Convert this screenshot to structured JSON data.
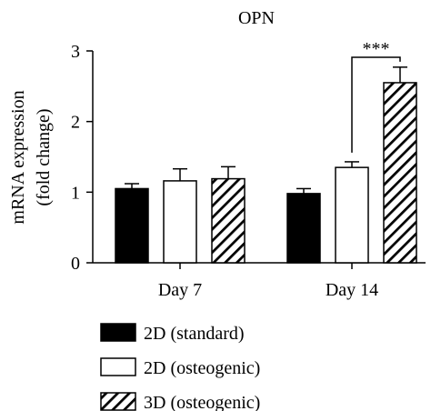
{
  "chart_data": {
    "type": "bar",
    "title": "OPN",
    "ylabel_line1": "mRNA expression",
    "ylabel_line2": "(fold change)",
    "xlabel": "",
    "ylim": [
      0,
      3
    ],
    "yticks": [
      "0",
      "1",
      "2",
      "3"
    ],
    "categories": [
      "Day 7",
      "Day 14"
    ],
    "series": [
      {
        "name": "2D (standard)",
        "pattern": "solid",
        "color": "#000000",
        "values": [
          1.05,
          0.98
        ],
        "errors": [
          0.07,
          0.07
        ]
      },
      {
        "name": "2D (osteogenic)",
        "pattern": "white",
        "color": "#ffffff",
        "values": [
          1.16,
          1.35
        ],
        "errors": [
          0.17,
          0.08
        ]
      },
      {
        "name": "3D (osteogenic)",
        "pattern": "hatched",
        "color": "#000000",
        "values": [
          1.19,
          2.55
        ],
        "errors": [
          0.17,
          0.22
        ]
      }
    ],
    "annotations": [
      {
        "text": "***",
        "category": "Day 14",
        "between": [
          "2D (osteogenic)",
          "3D (osteogenic)"
        ]
      }
    ]
  }
}
